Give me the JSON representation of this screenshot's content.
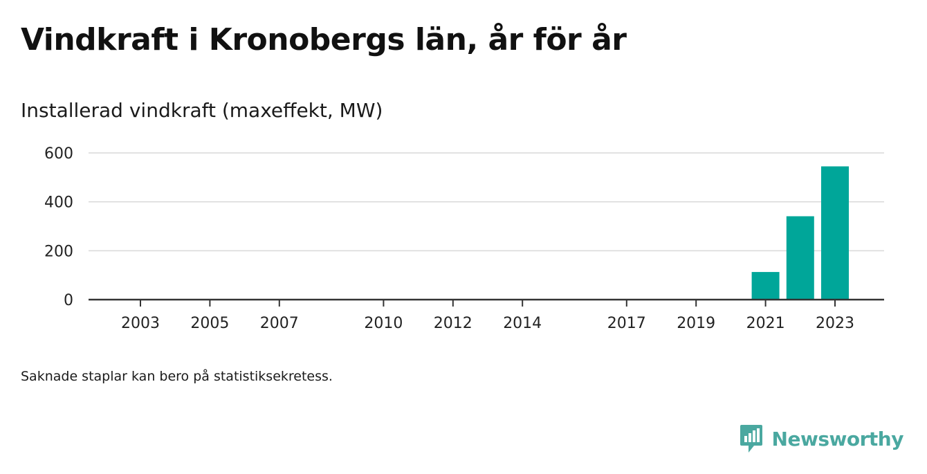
{
  "title": "Vindkraft i Kronobergs län, år för år",
  "subtitle": "Installerad vindkraft (maxeffekt, MW)",
  "note": "Saknade staplar kan bero på statistiksekretess.",
  "brand": {
    "name": "Newsworthy",
    "icon": "newsworthy-logo-icon",
    "color": "#4aa8a0"
  },
  "colors": {
    "bar": "#00a699",
    "grid": "#d9d9d9",
    "axis": "#333333"
  },
  "chart_data": {
    "type": "bar",
    "title": "Vindkraft i Kronobergs län, år för år",
    "ylabel": "Installerad vindkraft (maxeffekt, MW)",
    "xlabel": "",
    "xlim": [
      2001,
      2024
    ],
    "ylim": [
      0,
      600
    ],
    "yticks": [
      0,
      200,
      400,
      600
    ],
    "xticks": [
      2003,
      2005,
      2007,
      2010,
      2012,
      2014,
      2017,
      2019,
      2021,
      2023
    ],
    "grid": true,
    "legend": "none",
    "categories": [
      2003,
      2005,
      2007,
      2010,
      2012,
      2014,
      2017,
      2019,
      2021,
      2022,
      2023
    ],
    "values": [
      0,
      0,
      0,
      0,
      0,
      0,
      0,
      0,
      113,
      341,
      545
    ]
  }
}
